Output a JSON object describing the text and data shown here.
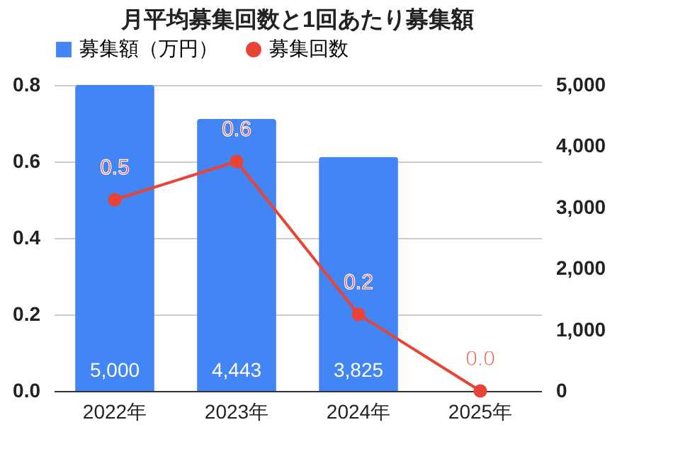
{
  "chart_data": {
    "type": "bar",
    "title": "月平均募集回数と1回あたり募集額",
    "categories": [
      "2022年",
      "2023年",
      "2024年",
      "2025年"
    ],
    "series": [
      {
        "name": "募集額（万円）",
        "axis": "y2",
        "color": "#4285f4",
        "values": [
          5000,
          4443,
          3825,
          0
        ],
        "value_labels": [
          "5,000",
          "4,443",
          "3,825",
          null
        ]
      },
      {
        "name": "募集回数",
        "type": "line",
        "color": "#ea4335",
        "values": [
          0.5,
          0.6,
          0.2,
          0.0
        ],
        "value_labels": [
          "0.5",
          "0.6",
          "0.2",
          "0.0"
        ]
      }
    ],
    "ylim": [
      0,
      0.8
    ],
    "yticks": [
      {
        "value": 0,
        "label": "0.0"
      },
      0.2,
      0.4,
      0.6,
      0.8
    ],
    "y2lim": [
      0,
      5000
    ],
    "y2ticks": [
      0,
      {
        "value": 1000,
        "label": "1,000"
      },
      {
        "value": 2000,
        "label": "2,000"
      },
      {
        "value": 3000,
        "label": "3,000"
      },
      {
        "value": 4000,
        "label": "4,000"
      },
      {
        "value": 5000,
        "label": "5,000"
      }
    ],
    "grid": "y",
    "legend": "top",
    "marker": "circle",
    "line_style": "solid"
  }
}
